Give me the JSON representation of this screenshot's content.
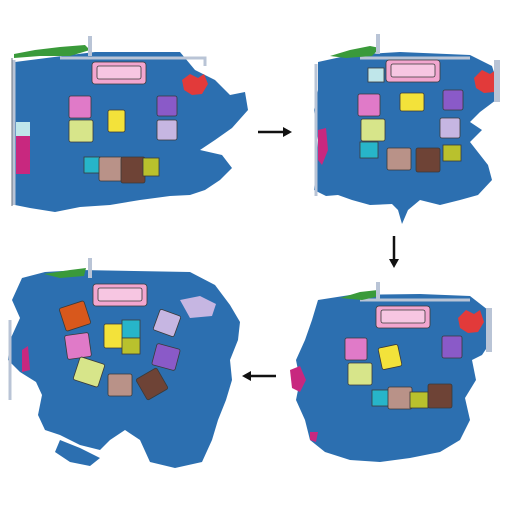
{
  "colors": {
    "floor": "#2c6fb0",
    "sofa": "#f2a6cf",
    "chair_pink": "#e07ac8",
    "chair_lime": "#d7e58a",
    "chair_yellow": "#f3e23a",
    "chair_purple": "#8a5ac8",
    "chair_lavender": "#c6b6e2",
    "ottoman_cyan": "#27b5c9",
    "chair_mauve": "#b99288",
    "chair_brown": "#6e4336",
    "chair_olive": "#b9c12d",
    "chair_orange": "#d8581c",
    "rug_magenta": "#c8287f",
    "plant_green": "#3a9a3a",
    "flowers_red": "#e23a3a",
    "wall_light": "#b9c4d6"
  },
  "icons": [
    "arrow-right-icon",
    "arrow-down-icon",
    "arrow-left-icon"
  ],
  "panels": [
    "scene-1",
    "scene-2",
    "scene-3",
    "scene-4"
  ]
}
